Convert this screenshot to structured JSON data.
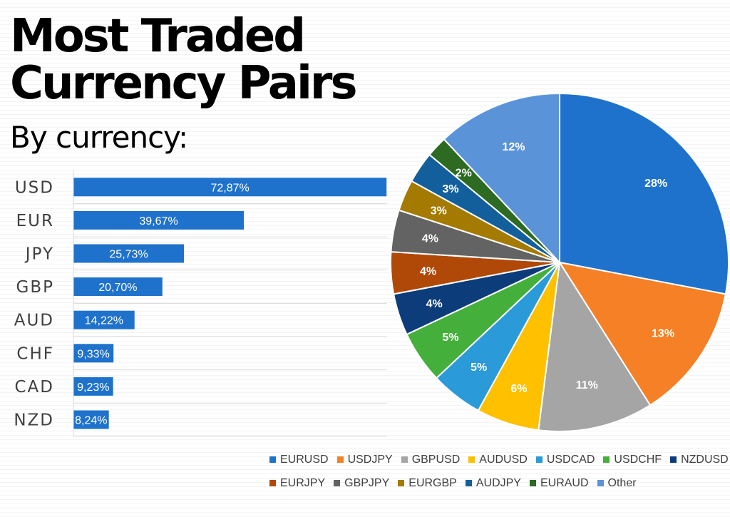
{
  "title_line1": "Most Traded",
  "title_line2": "Currency Pairs",
  "subtitle": "By currency:",
  "chart_data": [
    {
      "type": "bar",
      "orientation": "horizontal",
      "categories": [
        "USD",
        "EUR",
        "JPY",
        "GBP",
        "AUD",
        "CHF",
        "CAD",
        "NZD"
      ],
      "values": [
        72.87,
        39.67,
        25.73,
        20.7,
        14.22,
        9.33,
        9.23,
        8.24
      ],
      "labels": [
        "72,87%",
        "39,67%",
        "25,73%",
        "20,70%",
        "14,22%",
        "9,33%",
        "9,23%",
        "8,24%"
      ],
      "color": "#1F72CC",
      "xlim": [
        0,
        73
      ],
      "grid": true
    },
    {
      "type": "pie",
      "slices": [
        {
          "name": "EURUSD",
          "value": 28,
          "label": "28%",
          "color": "#1F72CC"
        },
        {
          "name": "USDJPY",
          "value": 13,
          "label": "13%",
          "color": "#F58025"
        },
        {
          "name": "GBPUSD",
          "value": 11,
          "label": "11%",
          "color": "#A5A5A5"
        },
        {
          "name": "AUDUSD",
          "value": 6,
          "label": "6%",
          "color": "#FFC000"
        },
        {
          "name": "USDCAD",
          "value": 5,
          "label": "5%",
          "color": "#2A9AD8"
        },
        {
          "name": "USDCHF",
          "value": 5,
          "label": "5%",
          "color": "#44AF3B"
        },
        {
          "name": "NZDUSD",
          "value": 4,
          "label": "4%",
          "color": "#0D3C7A"
        },
        {
          "name": "EURJPY",
          "value": 4,
          "label": "4%",
          "color": "#B04808"
        },
        {
          "name": "GBPJPY",
          "value": 4,
          "label": "4%",
          "color": "#636363"
        },
        {
          "name": "EURGBP",
          "value": 3,
          "label": "3%",
          "color": "#A47A00"
        },
        {
          "name": "AUDJPY",
          "value": 3,
          "label": "3%",
          "color": "#135F9C"
        },
        {
          "name": "EURAUD",
          "value": 2,
          "label": "2%",
          "color": "#2D6B22"
        },
        {
          "name": "Other",
          "value": 12,
          "label": "12%",
          "color": "#5B93D9"
        }
      ],
      "legend_position": "bottom"
    }
  ]
}
